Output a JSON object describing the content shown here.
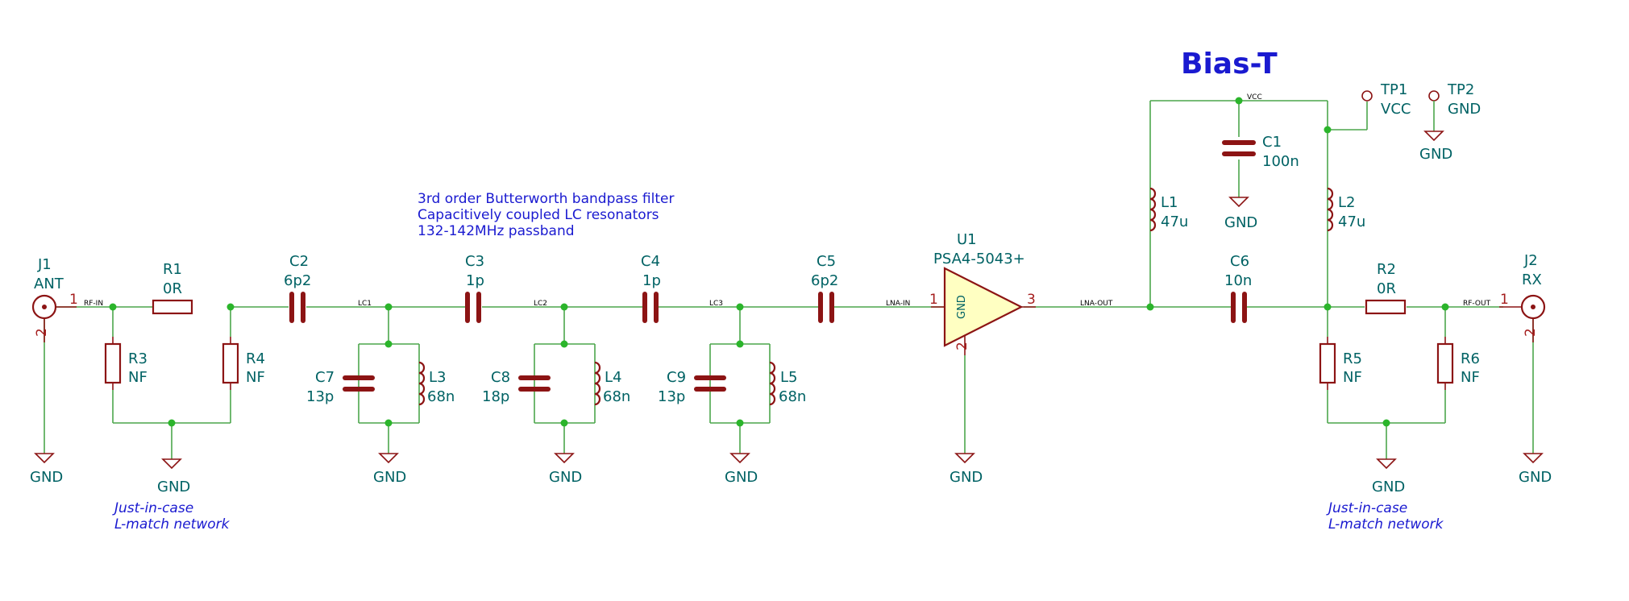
{
  "title": "Bias-T",
  "notes": {
    "filter": [
      "3rd order Butterworth bandpass filter",
      "Capacitively coupled LC resonators",
      "132-142MHz passband"
    ],
    "lmatch_left": [
      "Just-in-case",
      "L-match network"
    ],
    "lmatch_right": [
      "Just-in-case",
      "L-match network"
    ]
  },
  "nets": {
    "rf_in": "RF-IN",
    "lc1": "LC1",
    "lc2": "LC2",
    "lc3": "LC3",
    "lna_in": "LNA-IN",
    "lna_out": "LNA-OUT",
    "vcc": "VCC",
    "rf_out": "RF-OUT"
  },
  "components": {
    "J1": {
      "ref": "J1",
      "value": "ANT",
      "pin1": "1",
      "pin2": "2"
    },
    "J2": {
      "ref": "J2",
      "value": "RX",
      "pin1": "1",
      "pin2": "2"
    },
    "R1": {
      "ref": "R1",
      "value": "0R"
    },
    "R2": {
      "ref": "R2",
      "value": "0R"
    },
    "R3": {
      "ref": "R3",
      "value": "NF"
    },
    "R4": {
      "ref": "R4",
      "value": "NF"
    },
    "R5": {
      "ref": "R5",
      "value": "NF"
    },
    "R6": {
      "ref": "R6",
      "value": "NF"
    },
    "C1": {
      "ref": "C1",
      "value": "100n"
    },
    "C2": {
      "ref": "C2",
      "value": "6p2"
    },
    "C3": {
      "ref": "C3",
      "value": "1p"
    },
    "C4": {
      "ref": "C4",
      "value": "1p"
    },
    "C5": {
      "ref": "C5",
      "value": "6p2"
    },
    "C6": {
      "ref": "C6",
      "value": "10n"
    },
    "C7": {
      "ref": "C7",
      "value": "13p"
    },
    "C8": {
      "ref": "C8",
      "value": "18p"
    },
    "C9": {
      "ref": "C9",
      "value": "13p"
    },
    "L1": {
      "ref": "L1",
      "value": "47u"
    },
    "L2": {
      "ref": "L2",
      "value": "47u"
    },
    "L3": {
      "ref": "L3",
      "value": "68n"
    },
    "L4": {
      "ref": "L4",
      "value": "68n"
    },
    "L5": {
      "ref": "L5",
      "value": "68n"
    },
    "U1": {
      "ref": "U1",
      "value": "PSA4-5043+",
      "gnd": "GND",
      "pin1": "1",
      "pin2": "2",
      "pin3": "3"
    },
    "TP1": {
      "ref": "TP1",
      "value": "VCC"
    },
    "TP2": {
      "ref": "TP2",
      "value": "GND"
    }
  },
  "gnd_label": "GND",
  "colors": {
    "wire": "#4ca64c",
    "symbol": "#8c1414",
    "ref_text": "#006264",
    "note_text": "#1a1ad0",
    "amp_fill": "#ffffc2"
  }
}
